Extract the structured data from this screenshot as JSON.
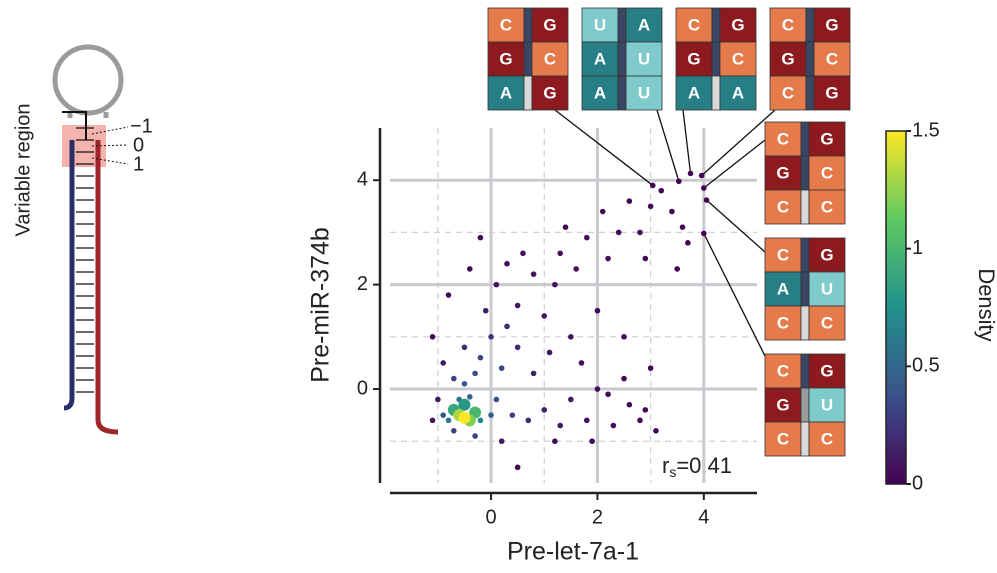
{
  "diagram": {
    "region_label": "Variable region",
    "positions": [
      "−1",
      "0",
      "1"
    ]
  },
  "chart_data": {
    "type": "scatter",
    "x_label": "Pre-let-7a-1",
    "y_label": "Pre-miR-374b",
    "xlim": [
      -1.9,
      5.0
    ],
    "ylim": [
      -1.8,
      5.0
    ],
    "xticks": [
      0,
      2,
      4
    ],
    "yticks": [
      0,
      2,
      4
    ],
    "minor_xticks": [
      -1,
      1,
      3
    ],
    "minor_yticks": [
      -1,
      1,
      3
    ],
    "grid": true,
    "annotation": {
      "symbol": "r",
      "subscript": "s",
      "text": "=0.41"
    },
    "colorbar": {
      "title": "Density",
      "lim": [
        0,
        1.5
      ],
      "ticks": [
        0,
        0.5,
        1,
        1.5
      ],
      "colormap": [
        "#440154",
        "#3b528b",
        "#21918c",
        "#5ec962",
        "#fde725"
      ]
    },
    "points": [
      {
        "x": -0.5,
        "y": -0.55,
        "density": 1.5
      },
      {
        "x": -0.6,
        "y": -0.5,
        "density": 1.3
      },
      {
        "x": -0.4,
        "y": -0.6,
        "density": 1.2
      },
      {
        "x": -0.7,
        "y": -0.4,
        "density": 0.9
      },
      {
        "x": -0.3,
        "y": -0.45,
        "density": 1.0
      },
      {
        "x": -0.5,
        "y": -0.3,
        "density": 0.8
      },
      {
        "x": -0.8,
        "y": -0.6,
        "density": 0.6
      },
      {
        "x": -0.2,
        "y": -0.6,
        "density": 0.7
      },
      {
        "x": -0.6,
        "y": -0.2,
        "density": 0.6
      },
      {
        "x": -0.4,
        "y": -0.15,
        "density": 0.5
      },
      {
        "x": -0.9,
        "y": -0.5,
        "density": 0.4
      },
      {
        "x": 0,
        "y": -0.5,
        "density": 0.45
      },
      {
        "x": -0.5,
        "y": 0.1,
        "density": 0.4
      },
      {
        "x": -0.3,
        "y": 0.3,
        "density": 0.35
      },
      {
        "x": -0.7,
        "y": 0.2,
        "density": 0.3
      },
      {
        "x": 0.1,
        "y": -0.2,
        "density": 0.35
      },
      {
        "x": -0.2,
        "y": 0.6,
        "density": 0.3
      },
      {
        "x": -0.5,
        "y": 0.8,
        "density": 0.2
      },
      {
        "x": 0.2,
        "y": 0.4,
        "density": 0.3
      },
      {
        "x": 0,
        "y": 1.0,
        "density": 0.25
      },
      {
        "x": -0.1,
        "y": 1.5,
        "density": 0.15
      },
      {
        "x": 0.3,
        "y": 1.2,
        "density": 0.2
      },
      {
        "x": 0.5,
        "y": 0.8,
        "density": 0.2
      },
      {
        "x": 0.4,
        "y": -0.5,
        "density": 0.3
      },
      {
        "x": 0.7,
        "y": -0.6,
        "density": 0.2
      },
      {
        "x": 1.0,
        "y": -0.4,
        "density": 0.15
      },
      {
        "x": 1.3,
        "y": -0.7,
        "density": 0.1
      },
      {
        "x": 1.8,
        "y": -0.6,
        "density": 0.08
      },
      {
        "x": 2.3,
        "y": -0.7,
        "density": 0.05
      },
      {
        "x": 2.8,
        "y": -0.6,
        "density": 0.03
      },
      {
        "x": 3.1,
        "y": -0.8,
        "density": 0.02
      },
      {
        "x": 2.6,
        "y": -0.3,
        "density": 0.03
      },
      {
        "x": 1.5,
        "y": -0.2,
        "density": 0.1
      },
      {
        "x": 2.0,
        "y": 0,
        "density": 0.05
      },
      {
        "x": 2.5,
        "y": 0.2,
        "density": 0.04
      },
      {
        "x": 3.0,
        "y": 0.4,
        "density": 0.02
      },
      {
        "x": 2.9,
        "y": -0.4,
        "density": 0.03
      },
      {
        "x": -1.1,
        "y": -0.6,
        "density": 0.1
      },
      {
        "x": -1.0,
        "y": -0.2,
        "density": 0.1
      },
      {
        "x": -0.9,
        "y": 0.5,
        "density": 0.1
      },
      {
        "x": -1.1,
        "y": 1.0,
        "density": 0.05
      },
      {
        "x": -0.8,
        "y": 1.8,
        "density": 0.04
      },
      {
        "x": -0.4,
        "y": 2.3,
        "density": 0.03
      },
      {
        "x": -0.2,
        "y": 2.9,
        "density": 0.02
      },
      {
        "x": 0.1,
        "y": 2.0,
        "density": 0.08
      },
      {
        "x": 0.5,
        "y": 1.6,
        "density": 0.1
      },
      {
        "x": 0.8,
        "y": 2.2,
        "density": 0.08
      },
      {
        "x": 0.6,
        "y": 2.6,
        "density": 0.06
      },
      {
        "x": 1.0,
        "y": 1.4,
        "density": 0.1
      },
      {
        "x": 1.2,
        "y": 2.0,
        "density": 0.08
      },
      {
        "x": 1.3,
        "y": 2.6,
        "density": 0.07
      },
      {
        "x": 1.6,
        "y": 2.3,
        "density": 0.07
      },
      {
        "x": 1.8,
        "y": 2.9,
        "density": 0.06
      },
      {
        "x": 1.5,
        "y": 1.0,
        "density": 0.08
      },
      {
        "x": 2.0,
        "y": 1.5,
        "density": 0.05
      },
      {
        "x": 2.2,
        "y": 2.5,
        "density": 0.06
      },
      {
        "x": 2.4,
        "y": 3.0,
        "density": 0.05
      },
      {
        "x": 2.1,
        "y": 3.4,
        "density": 0.04
      },
      {
        "x": 2.6,
        "y": 3.6,
        "density": 0.04
      },
      {
        "x": 2.8,
        "y": 3.0,
        "density": 0.04
      },
      {
        "x": 3.0,
        "y": 3.5,
        "density": 0.03
      },
      {
        "x": 3.2,
        "y": 3.8,
        "density": 0.02
      },
      {
        "x": 3.4,
        "y": 3.4,
        "density": 0.02
      },
      {
        "x": 3.6,
        "y": 3.1,
        "density": 0.02
      },
      {
        "x": 2.5,
        "y": 1.0,
        "density": 0.03
      },
      {
        "x": 2.2,
        "y": -0.1,
        "density": 0.04
      },
      {
        "x": 1.7,
        "y": 0.5,
        "density": 0.06
      },
      {
        "x": 1.1,
        "y": 0.7,
        "density": 0.1
      },
      {
        "x": 0.8,
        "y": 0.3,
        "density": 0.15
      },
      {
        "x": 0.2,
        "y": -1.0,
        "density": 0.1
      },
      {
        "x": -0.3,
        "y": -0.9,
        "density": 0.3
      },
      {
        "x": -0.7,
        "y": -0.8,
        "density": 0.3
      },
      {
        "x": 0.5,
        "y": -1.5,
        "density": 0.01
      },
      {
        "x": 1.2,
        "y": -1.0,
        "density": 0.05
      },
      {
        "x": 3.5,
        "y": 2.3,
        "density": 0.01
      },
      {
        "x": 3.7,
        "y": 2.8,
        "density": 0.01
      },
      {
        "x": 1.9,
        "y": -1.0,
        "density": 0.03
      },
      {
        "x": 0.3,
        "y": 2.4,
        "density": 0.06
      },
      {
        "x": 1.4,
        "y": 3.1,
        "density": 0.03
      },
      {
        "x": 2.9,
        "y": 2.5,
        "density": 0.03
      }
    ],
    "base_colors": {
      "C": "#e57a4b",
      "G": "#8c1a1e",
      "U": "#7fcbcb",
      "A": "#277f85"
    },
    "pair_colors": {
      "paired": "#3a4663",
      "wobble": "#9b9b9b",
      "mismatch": "#d9d9d9"
    },
    "annotated_points": [
      {
        "x": 3.04,
        "y": 3.9,
        "pairs": [
          [
            "C",
            "G"
          ],
          [
            "G",
            "C"
          ],
          [
            "A",
            "G"
          ]
        ]
      },
      {
        "x": 3.53,
        "y": 3.98,
        "pairs": [
          [
            "U",
            "A"
          ],
          [
            "A",
            "U"
          ],
          [
            "A",
            "U"
          ]
        ]
      },
      {
        "x": 3.75,
        "y": 4.13,
        "pairs": [
          [
            "C",
            "G"
          ],
          [
            "G",
            "C"
          ],
          [
            "A",
            "A"
          ]
        ]
      },
      {
        "x": 3.96,
        "y": 4.09,
        "pairs": [
          [
            "C",
            "G"
          ],
          [
            "G",
            "C"
          ],
          [
            "C",
            "G"
          ]
        ]
      },
      {
        "x": 4.0,
        "y": 3.85,
        "pairs": [
          [
            "C",
            "G"
          ],
          [
            "G",
            "C"
          ],
          [
            "C",
            "C"
          ]
        ]
      },
      {
        "x": 4.05,
        "y": 3.62,
        "pairs": [
          [
            "C",
            "G"
          ],
          [
            "A",
            "U"
          ],
          [
            "C",
            "C"
          ]
        ]
      },
      {
        "x": 4.0,
        "y": 2.98,
        "pairs": [
          [
            "C",
            "G"
          ],
          [
            "G",
            "U"
          ],
          [
            "C",
            "C"
          ]
        ]
      }
    ]
  }
}
